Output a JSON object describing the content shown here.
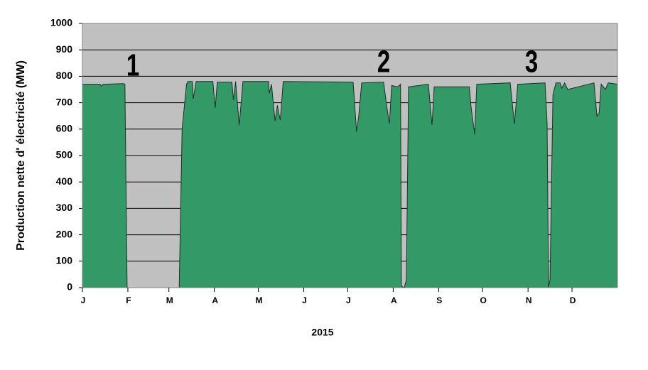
{
  "chart_data": {
    "type": "area",
    "y_label": "Production nette d' électricité (MW)",
    "x_label": "2015",
    "annotations": [
      "1",
      "2",
      "3"
    ],
    "xlim": [
      0,
      365
    ],
    "xticks": [
      {
        "value": 0,
        "label": "J"
      },
      {
        "value": 31,
        "label": "F"
      },
      {
        "value": 59,
        "label": "M"
      },
      {
        "value": 90,
        "label": "A"
      },
      {
        "value": 120,
        "label": "M"
      },
      {
        "value": 151,
        "label": "J"
      },
      {
        "value": 181,
        "label": "J"
      },
      {
        "value": 212,
        "label": "A"
      },
      {
        "value": 243,
        "label": "S"
      },
      {
        "value": 273,
        "label": "O"
      },
      {
        "value": 304,
        "label": "N"
      },
      {
        "value": 334,
        "label": "D"
      }
    ],
    "ylim": [
      0,
      1000
    ],
    "yticks": [
      0,
      100,
      200,
      300,
      400,
      500,
      600,
      700,
      800,
      900,
      1000
    ],
    "grid": true,
    "x": [
      0,
      12,
      13,
      14,
      28,
      29,
      30.5,
      66,
      68,
      71,
      72,
      75,
      75.6,
      77.6,
      89,
      90.6,
      92,
      102,
      103,
      104.5,
      107,
      109.5,
      127,
      127.5,
      129,
      131.4,
      133,
      134,
      135,
      137,
      184.7,
      187,
      188.5,
      190.5,
      205.5,
      207.5,
      209.4,
      211,
      215,
      217,
      217.6,
      219.6,
      221,
      222.5,
      236,
      238.5,
      240,
      264,
      265,
      267.6,
      269,
      291.8,
      294.7,
      297,
      315.6,
      317,
      318,
      319,
      321,
      323,
      326,
      327,
      329,
      331,
      349,
      351,
      352.5,
      353.9,
      356.8,
      358.7,
      365
    ],
    "series": [
      {
        "color": "#339966",
        "values": [
          770,
          770,
          762,
          770,
          772,
          770,
          0,
          0,
          600,
          770,
          780,
          780,
          715,
          780,
          780,
          680,
          778,
          778,
          710,
          780,
          615,
          780,
          780,
          735,
          770,
          630,
          690,
          660,
          635,
          780,
          778,
          590,
          650,
          775,
          778,
          690,
          620,
          765,
          760,
          770,
          5,
          0,
          30,
          760,
          770,
          615,
          760,
          760,
          690,
          580,
          770,
          775,
          620,
          770,
          775,
          620,
          0,
          30,
          730,
          775,
          775,
          755,
          775,
          750,
          775,
          650,
          660,
          770,
          750,
          775,
          770
        ]
      }
    ]
  }
}
